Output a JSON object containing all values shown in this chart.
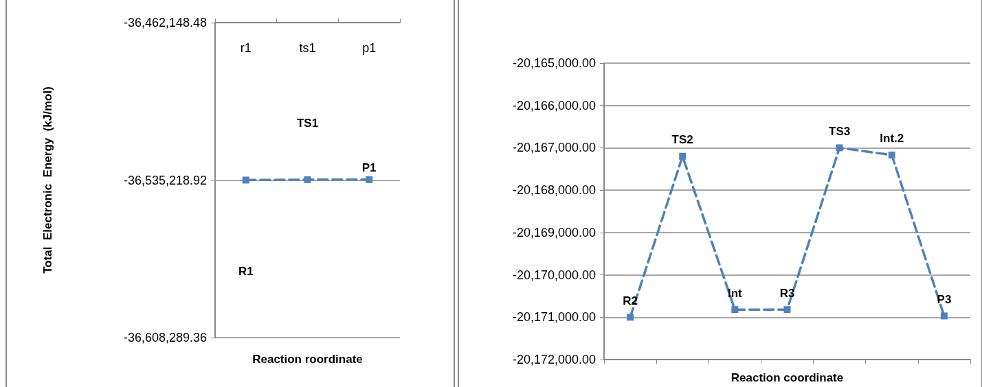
{
  "chart_data": [
    {
      "type": "line",
      "ylabel": "Total  Electronic  Energy  (kJ/mol)",
      "xlabel": "Reaction roordinate",
      "categories": [
        "r1",
        "ts1",
        "p1"
      ],
      "series": [
        {
          "color": "#4f81bd",
          "values": [
            -36535200,
            -36535000,
            -36535000
          ]
        }
      ],
      "ylim": [
        -36608289.36,
        -36462148.48
      ],
      "yticks": [
        {
          "value": -36608289.36,
          "label": "-36,608,289.36"
        },
        {
          "value": -36535218.92,
          "label": "-36,535,218.92"
        },
        {
          "value": -36462148.48,
          "label": "-36,462,148.48"
        }
      ],
      "grid": "y",
      "marker": "square",
      "line_style": "dashed",
      "annotations": [
        "R1",
        "TS1",
        "P1"
      ]
    },
    {
      "type": "line",
      "xlabel": "Reaction coordinate",
      "categories": [
        null,
        null,
        null,
        null,
        null,
        null,
        null
      ],
      "series": [
        {
          "color": "#4f81bd",
          "values": [
            -20171000,
            -20167200,
            -20170820,
            -20170820,
            -20167000,
            -20167170,
            -20170970
          ]
        }
      ],
      "ylim": [
        -20172000,
        -20165000
      ],
      "yticks": [
        {
          "value": -20172000,
          "label": "-20,172,000.00"
        },
        {
          "value": -20171000,
          "label": "-20,171,000.00"
        },
        {
          "value": -20170000,
          "label": "-20,170,000.00"
        },
        {
          "value": -20169000,
          "label": "-20,169,000.00"
        },
        {
          "value": -20168000,
          "label": "-20,168,000.00"
        },
        {
          "value": -20167000,
          "label": "-20,167,000.00"
        },
        {
          "value": -20166000,
          "label": "-20,166,000.00"
        },
        {
          "value": -20165000,
          "label": "-20,165,000.00"
        }
      ],
      "grid": "y",
      "marker": "square",
      "line_style": "dashed",
      "annotations": [
        {
          "text": "R2",
          "y": -20171000
        },
        {
          "text": "TS2",
          "y": -20167200
        },
        {
          "text": "Int",
          "y": -20170820
        },
        {
          "text": "R3",
          "y": -20170820
        },
        {
          "text": "TS3",
          "y": -20167000
        },
        {
          "text": "Int.2",
          "y": -20167170
        },
        {
          "text": "P3",
          "y": -20170970
        }
      ]
    }
  ]
}
